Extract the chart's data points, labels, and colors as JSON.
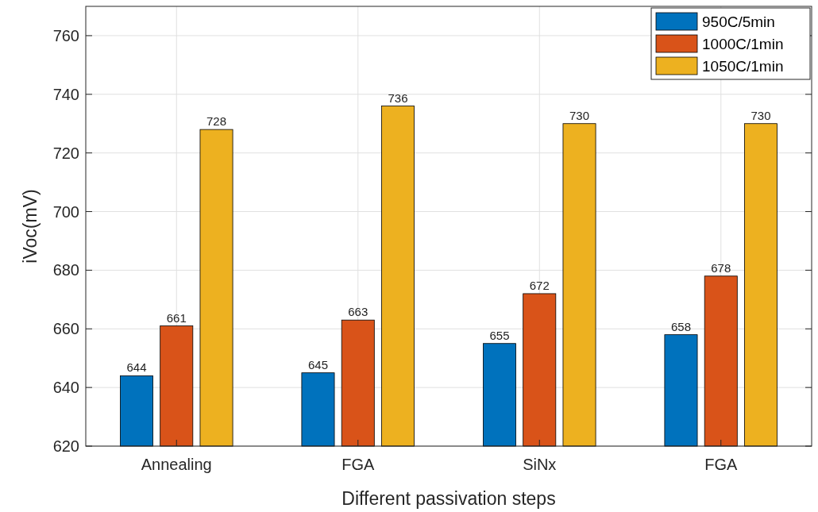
{
  "chart_data": {
    "type": "bar",
    "xlabel": "Different passivation steps",
    "ylabel": "iVoc(mV)",
    "categories": [
      "Annealing",
      "FGA",
      "SiNx",
      "FGA"
    ],
    "series": [
      {
        "name": "950C/5min",
        "color": "#0072bd",
        "values": [
          644,
          645,
          655,
          658
        ]
      },
      {
        "name": "1000C/1min",
        "color": "#d95319",
        "values": [
          661,
          663,
          672,
          678
        ]
      },
      {
        "name": "1050C/1min",
        "color": "#edb120",
        "values": [
          728,
          736,
          730,
          730
        ]
      }
    ],
    "ylim": [
      620,
      770
    ],
    "yticks": [
      620,
      640,
      660,
      680,
      700,
      720,
      740,
      760
    ],
    "grid": true,
    "legend": "top right",
    "data_labels": true
  }
}
